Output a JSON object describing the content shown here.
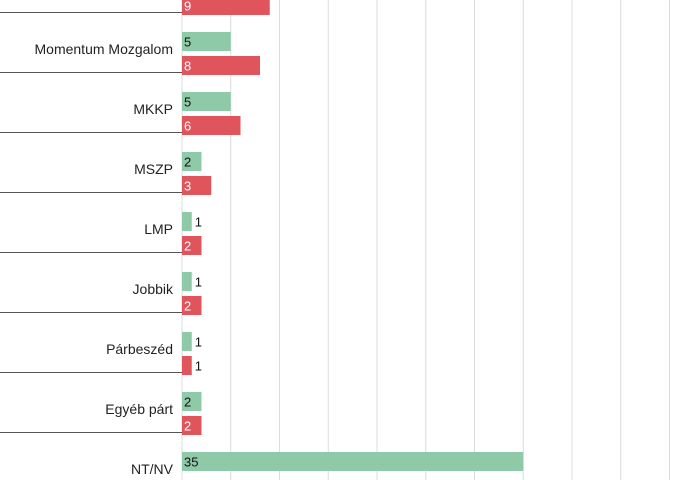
{
  "colors": {
    "series_a": "#8ec9a8",
    "series_b": "#e0545c",
    "grid": "#dcdcdc",
    "separator": "#555555",
    "label_dark": "#111111",
    "label_light": "#ffffff"
  },
  "chart_data": {
    "type": "bar",
    "orientation": "horizontal",
    "categories": [
      "",
      "Momentum Mozgalom",
      "MKKP",
      "MSZP",
      "LMP",
      "Jobbik",
      "Párbeszéd",
      "Egyéb párt",
      "NT/NV"
    ],
    "series": [
      {
        "values": [
          null,
          5,
          5,
          2,
          1,
          1,
          1,
          2,
          35
        ]
      },
      {
        "values": [
          9,
          8,
          6,
          3,
          2,
          2,
          1,
          2,
          null
        ]
      }
    ],
    "xlim": [
      0,
      50
    ],
    "grid": true,
    "legend": "none"
  }
}
